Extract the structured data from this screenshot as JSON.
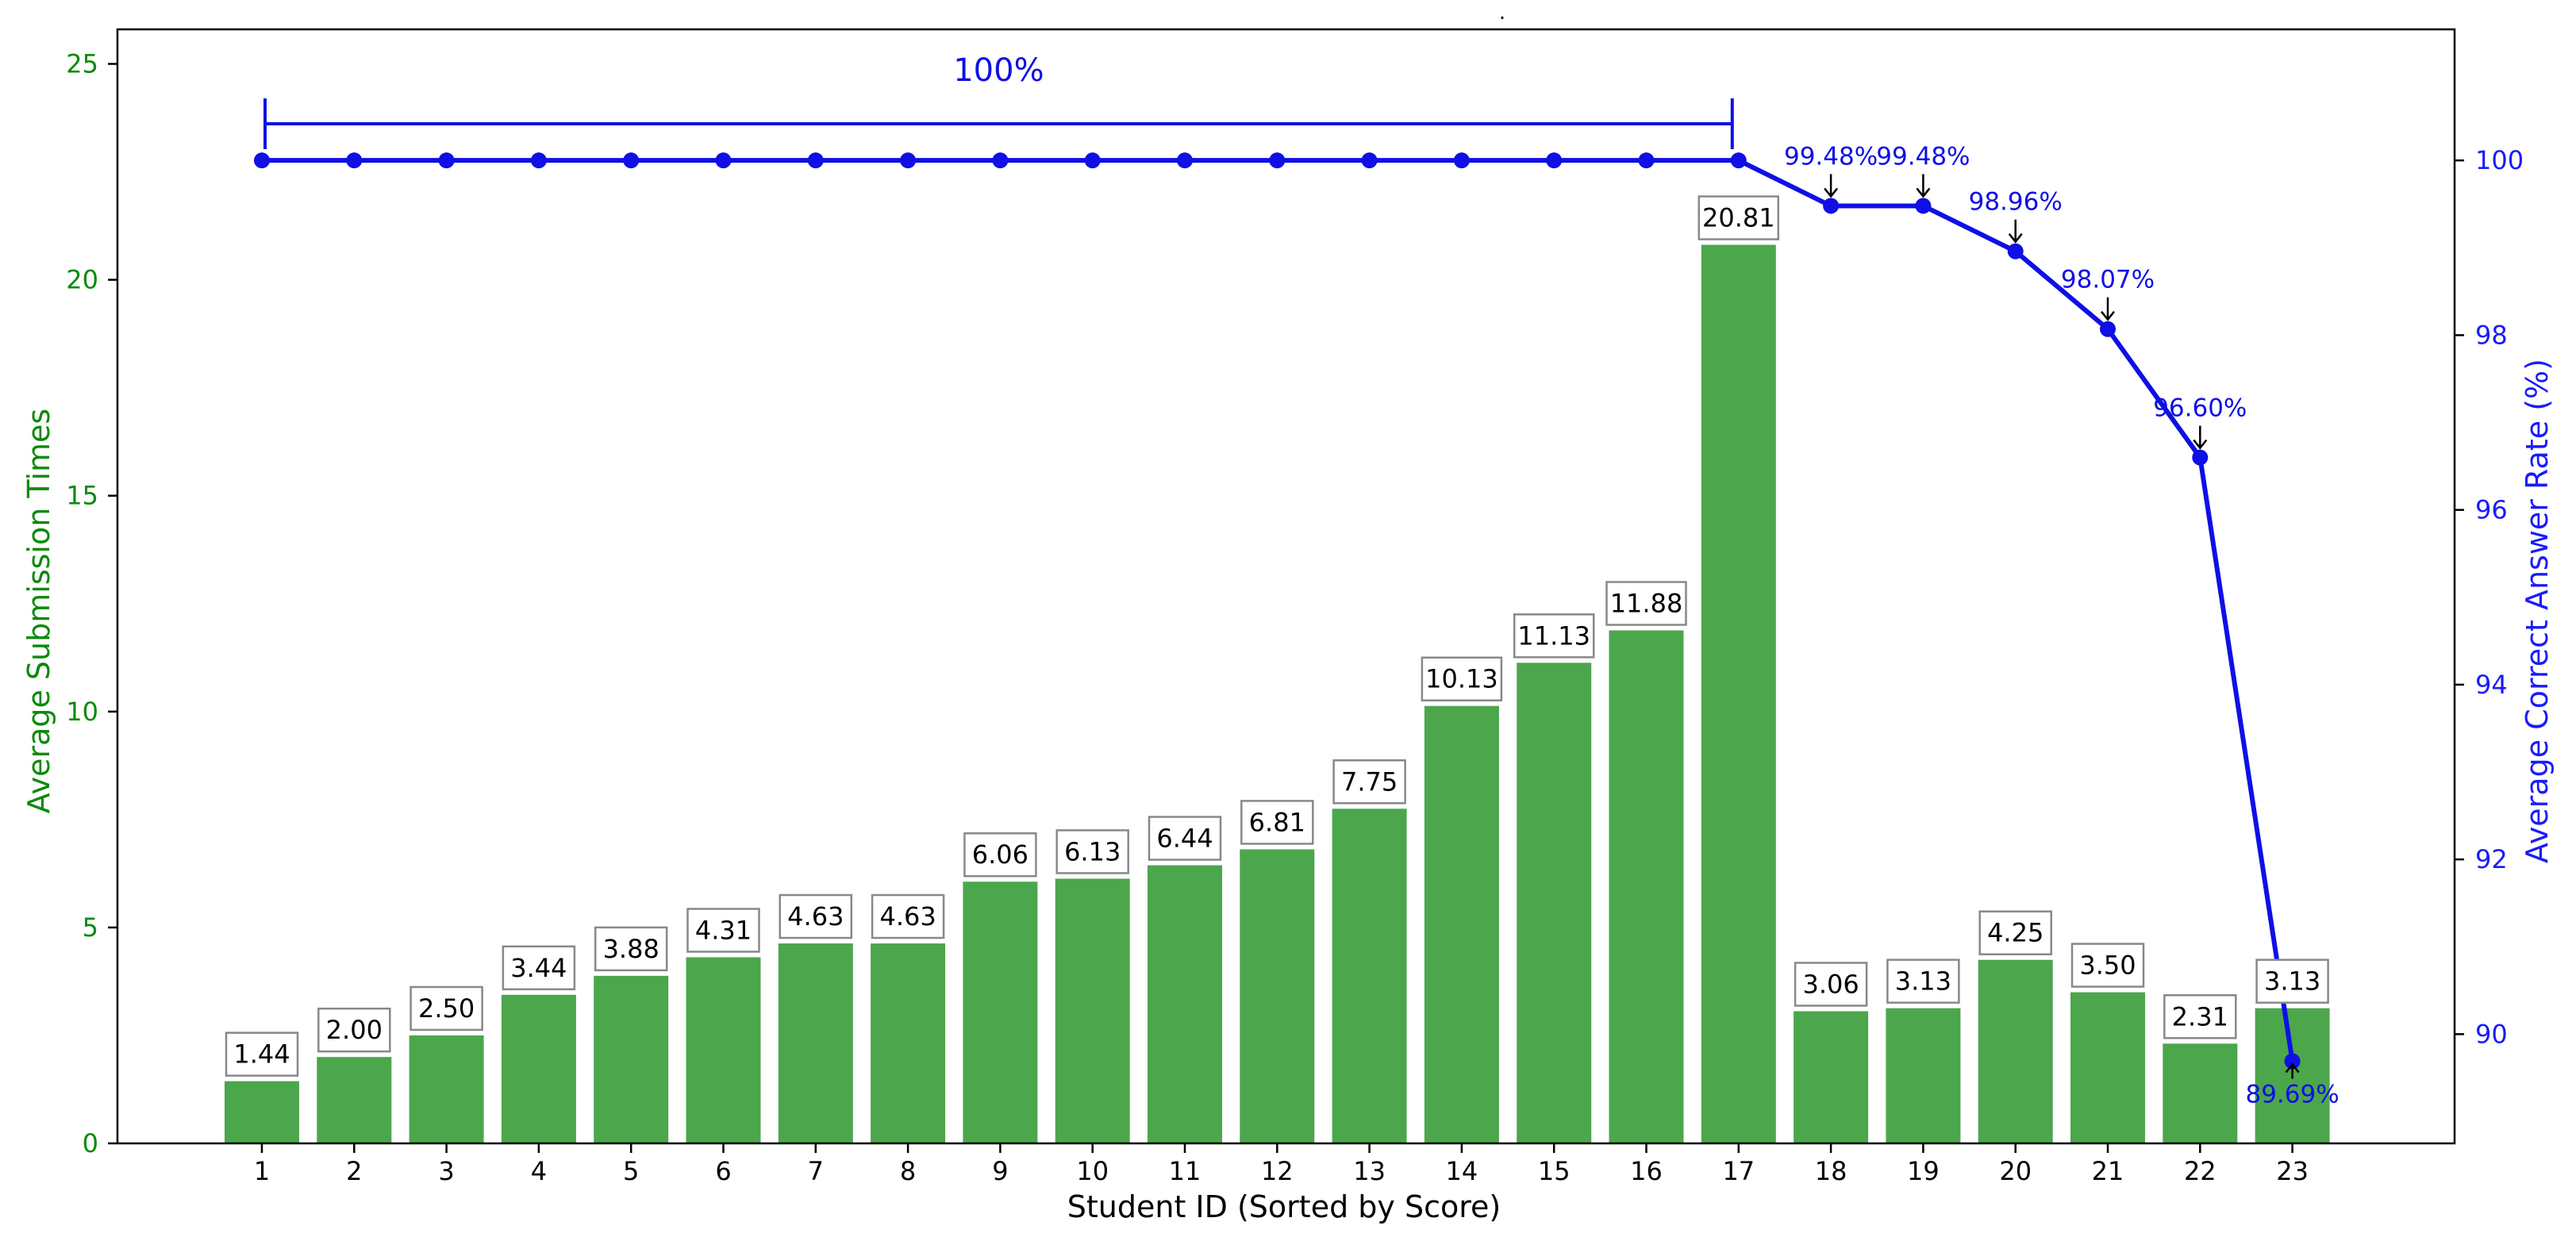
{
  "chart_data": {
    "type": "bar",
    "title": ".",
    "xlabel": "Student ID (Sorted by Score)",
    "ylabel_left": "Average Submission Times",
    "ylabel_right": "Average Correct Answer Rate (%)",
    "categories": [
      "1",
      "2",
      "3",
      "4",
      "5",
      "6",
      "7",
      "8",
      "9",
      "10",
      "11",
      "12",
      "13",
      "14",
      "15",
      "16",
      "17",
      "18",
      "19",
      "20",
      "21",
      "22",
      "23"
    ],
    "y_left_ticks": [
      0,
      5,
      10,
      15,
      20,
      25
    ],
    "y_right_ticks": [
      90,
      92,
      94,
      96,
      98,
      100
    ],
    "ylim_left": [
      0,
      25.8
    ],
    "ylim_right": [
      88.75,
      101.5
    ],
    "grid": false,
    "series": [
      {
        "axis": "left",
        "type": "bar",
        "values": [
          1.44,
          2.0,
          2.5,
          3.44,
          3.88,
          4.31,
          4.63,
          4.63,
          6.06,
          6.13,
          6.44,
          6.81,
          7.75,
          10.13,
          11.13,
          11.88,
          20.81,
          3.06,
          3.13,
          4.25,
          3.5,
          2.31,
          3.13
        ],
        "labels": [
          "1.44",
          "2.00",
          "2.50",
          "3.44",
          "3.88",
          "4.31",
          "4.63",
          "4.63",
          "6.06",
          "6.13",
          "6.44",
          "6.81",
          "7.75",
          "10.13",
          "11.13",
          "11.88",
          "20.81",
          "3.06",
          "3.13",
          "4.25",
          "3.50",
          "2.31",
          "3.13"
        ]
      },
      {
        "axis": "right",
        "type": "line",
        "values": [
          100,
          100,
          100,
          100,
          100,
          100,
          100,
          100,
          100,
          100,
          100,
          100,
          100,
          100,
          100,
          100,
          100,
          99.48,
          99.48,
          98.96,
          98.07,
          96.6,
          89.69
        ],
        "labels": {
          "18": "99.48%",
          "19": "99.48%",
          "20": "98.96%",
          "21": "98.07%",
          "22": "96.60%",
          "23": "89.69%"
        }
      }
    ],
    "bracket": {
      "from": "1",
      "to": "17",
      "label": "100%"
    },
    "colors": {
      "bar": "#4ca64c",
      "line": "#0f0fe6",
      "left_axis": "#0a8a0a",
      "right_axis": "#1a1aff",
      "label_box_border": "#888888",
      "text": "#000000"
    }
  }
}
